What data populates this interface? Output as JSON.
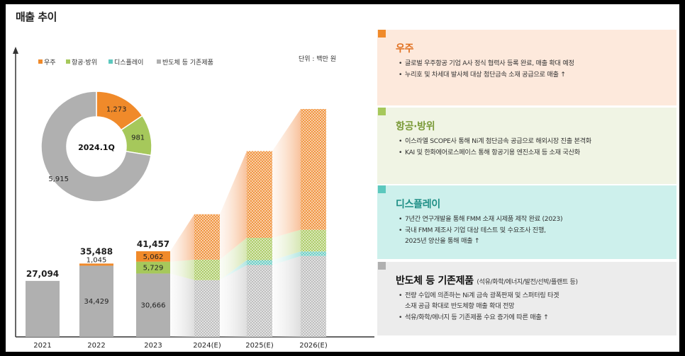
{
  "title": "매출 추이",
  "unit": "단위 : 백만 원",
  "legend": [
    {
      "label": "우주",
      "color": "#f08a2a"
    },
    {
      "label": "항공·방위",
      "color": "#a6c85b"
    },
    {
      "label": "디스플레이",
      "color": "#5cc8be"
    },
    {
      "label": "반도체 등 기존제품",
      "color": "#b0b0b0"
    }
  ],
  "chart_data": [
    {
      "type": "bar",
      "stacked": true,
      "title": "매출 추이",
      "categories": [
        "2021",
        "2022",
        "2023",
        "2024(E)",
        "2025(E)",
        "2026(E)"
      ],
      "series": [
        {
          "name": "반도체 등 기존제품",
          "values": [
            27094,
            34429,
            30666,
            null,
            null,
            null
          ]
        },
        {
          "name": "디스플레이",
          "values": [
            0,
            14,
            0,
            null,
            null,
            null
          ]
        },
        {
          "name": "항공·방위",
          "values": [
            0,
            0,
            5729,
            null,
            null,
            null
          ]
        },
        {
          "name": "우주",
          "values": [
            0,
            1045,
            5062,
            null,
            null,
            null
          ]
        }
      ],
      "totals": [
        "27,094",
        "35,488",
        "41,457"
      ],
      "segment_labels": {
        "2022": {
          "우주": "1,045",
          "반도체 등 기존제품": "34,429"
        },
        "2023": {
          "우주": "5,062",
          "항공·방위": "5,729",
          "반도체 등 기존제품": "30,666"
        }
      },
      "estimated_totals_relative": [
        0.495,
        0.75,
        0.92
      ],
      "unit": "백만 원"
    },
    {
      "type": "pie",
      "title": "2024.1Q",
      "labels": [
        "우주",
        "항공·방위",
        "반도체 등 기존제품"
      ],
      "values": [
        1273,
        981,
        5915
      ],
      "value_labels": [
        "1,273",
        "981",
        "5,915"
      ]
    }
  ],
  "panels": [
    {
      "name": "space",
      "title": "우주",
      "color": "#f08a2a",
      "bg": "#fde9dc",
      "bullets": [
        "글로벌 우주항공 기업 A사 정식 협력사 등록 완료, 매출 확대 예정",
        "누리호 및 차세대 발사체 대상 첨단금속 소재 공급으로 매출 ↑"
      ]
    },
    {
      "name": "aerospace",
      "title": "항공·방위",
      "color": "#a6c85b",
      "bg": "#f0f4e4",
      "bullets": [
        "이스라엘 SCOPE사 통해 Ni계 첨단금속 공급으로 해외시장 진출 본격화",
        "KAI 및 한화에어로스페이스 통해 항공기용 엔진소재 등 소재 국산화"
      ]
    },
    {
      "name": "display",
      "title": "디스플레이",
      "color": "#5cc8be",
      "bg": "#cdf0ec",
      "bullets": [
        "7년간 연구개발을 통해 FMM 소재 시제품 제작 완료 (2023)",
        "국내 FMM 제조사 기업 대상 테스트 및 수요조사 진행,\n2025년 양산을 통해 매출 ↑"
      ]
    },
    {
      "name": "semiconductor",
      "title": "반도체 등 기존제품",
      "subtitle": "(석유/화학/에너지/발전/선박/플랜트 등)",
      "color": "#b0b0b0",
      "bg": "#ececec",
      "bullets": [
        "전량 수입에 의존하는 Ni계 금속 광폭판재 및 스퍼터링 타겟\n소재 공급 확대로 반도체향 매출 확대 전망",
        "석유/화학/에너지 등 기존제품 수요 증가에 따른 매출 ↑"
      ]
    }
  ]
}
